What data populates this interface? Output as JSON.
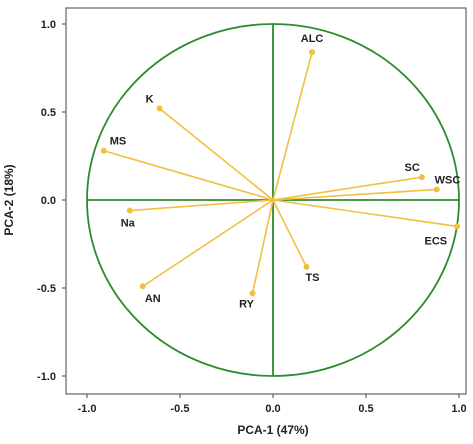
{
  "chart_data": {
    "type": "scatter",
    "title": "",
    "xlabel": "PCA-1 (47%)",
    "ylabel": "PCA-2 (18%)",
    "xlim": [
      -1.0,
      1.0
    ],
    "ylim": [
      -1.0,
      1.0
    ],
    "x_ticks": [
      "-1.0",
      "-0.5",
      "0.0",
      "0.5",
      "1.0"
    ],
    "y_ticks": [
      "1.0",
      "0.5",
      "0.0",
      "-0.5",
      "-1.0"
    ],
    "unit_circle": true,
    "vector_color": "#F0C040",
    "axis_color": "#2E8B2E",
    "points": [
      {
        "label": "ALC",
        "x": 0.21,
        "y": 0.84
      },
      {
        "label": "K",
        "x": -0.61,
        "y": 0.52
      },
      {
        "label": "MS",
        "x": -0.91,
        "y": 0.28
      },
      {
        "label": "SC",
        "x": 0.8,
        "y": 0.13
      },
      {
        "label": "WSC",
        "x": 0.88,
        "y": 0.06
      },
      {
        "label": "ECS",
        "x": 0.99,
        "y": -0.15
      },
      {
        "label": "Na",
        "x": -0.77,
        "y": -0.06
      },
      {
        "label": "TS",
        "x": 0.18,
        "y": -0.38
      },
      {
        "label": "RY",
        "x": -0.11,
        "y": -0.53
      },
      {
        "label": "AN",
        "x": -0.7,
        "y": -0.49
      }
    ]
  }
}
